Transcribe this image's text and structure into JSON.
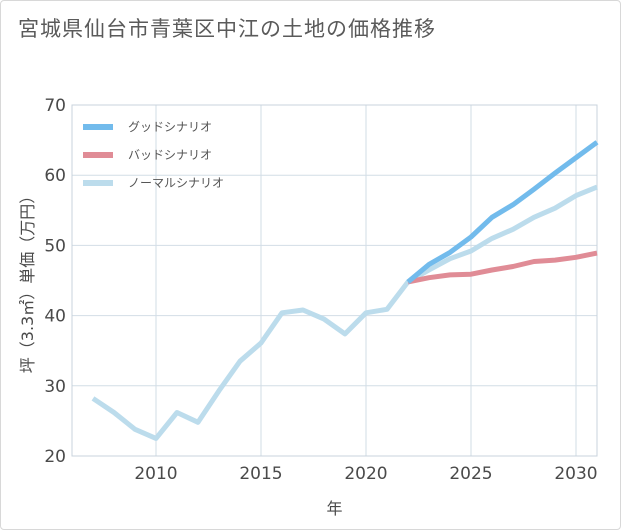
{
  "chart_data": {
    "type": "line",
    "title": "宮城県仙台市青葉区中江の土地の価格推移",
    "xlabel": "年",
    "ylabel": "坪（3.3㎡）単価（万円）",
    "xlim": [
      2006,
      2031
    ],
    "ylim": [
      20,
      70
    ],
    "xticks": [
      2010,
      2015,
      2020,
      2025,
      2030
    ],
    "yticks": [
      20,
      30,
      40,
      50,
      60,
      70
    ],
    "grid": true,
    "legend_position": "top-left",
    "series": [
      {
        "name": "グッドシナリオ",
        "color": "#72bbec",
        "x": [
          2022,
          2023,
          2024,
          2025,
          2026,
          2027,
          2028,
          2029,
          2030,
          2031
        ],
        "values": [
          44.8,
          47.3,
          49.0,
          51.2,
          54.0,
          55.8,
          58.0,
          60.3,
          62.5,
          64.7
        ]
      },
      {
        "name": "バッドシナリオ",
        "color": "#e08c96",
        "x": [
          2022,
          2023,
          2024,
          2025,
          2026,
          2027,
          2028,
          2029,
          2030,
          2031
        ],
        "values": [
          44.8,
          45.4,
          45.8,
          45.9,
          46.5,
          47.0,
          47.7,
          47.9,
          48.3,
          48.9
        ]
      },
      {
        "name": "ノーマルシナリオ",
        "color": "#bcdcec",
        "x": [
          2007,
          2008,
          2009,
          2010,
          2011,
          2012,
          2013,
          2014,
          2015,
          2016,
          2017,
          2018,
          2019,
          2020,
          2021,
          2022,
          2023,
          2024,
          2025,
          2026,
          2027,
          2028,
          2029,
          2030,
          2031
        ],
        "values": [
          28.2,
          26.2,
          23.8,
          22.5,
          26.2,
          24.8,
          29.3,
          33.5,
          36.1,
          40.4,
          40.8,
          39.5,
          37.4,
          40.4,
          40.9,
          44.8,
          46.5,
          48.1,
          49.2,
          51.0,
          52.3,
          54.0,
          55.3,
          57.1,
          58.3
        ]
      }
    ]
  }
}
